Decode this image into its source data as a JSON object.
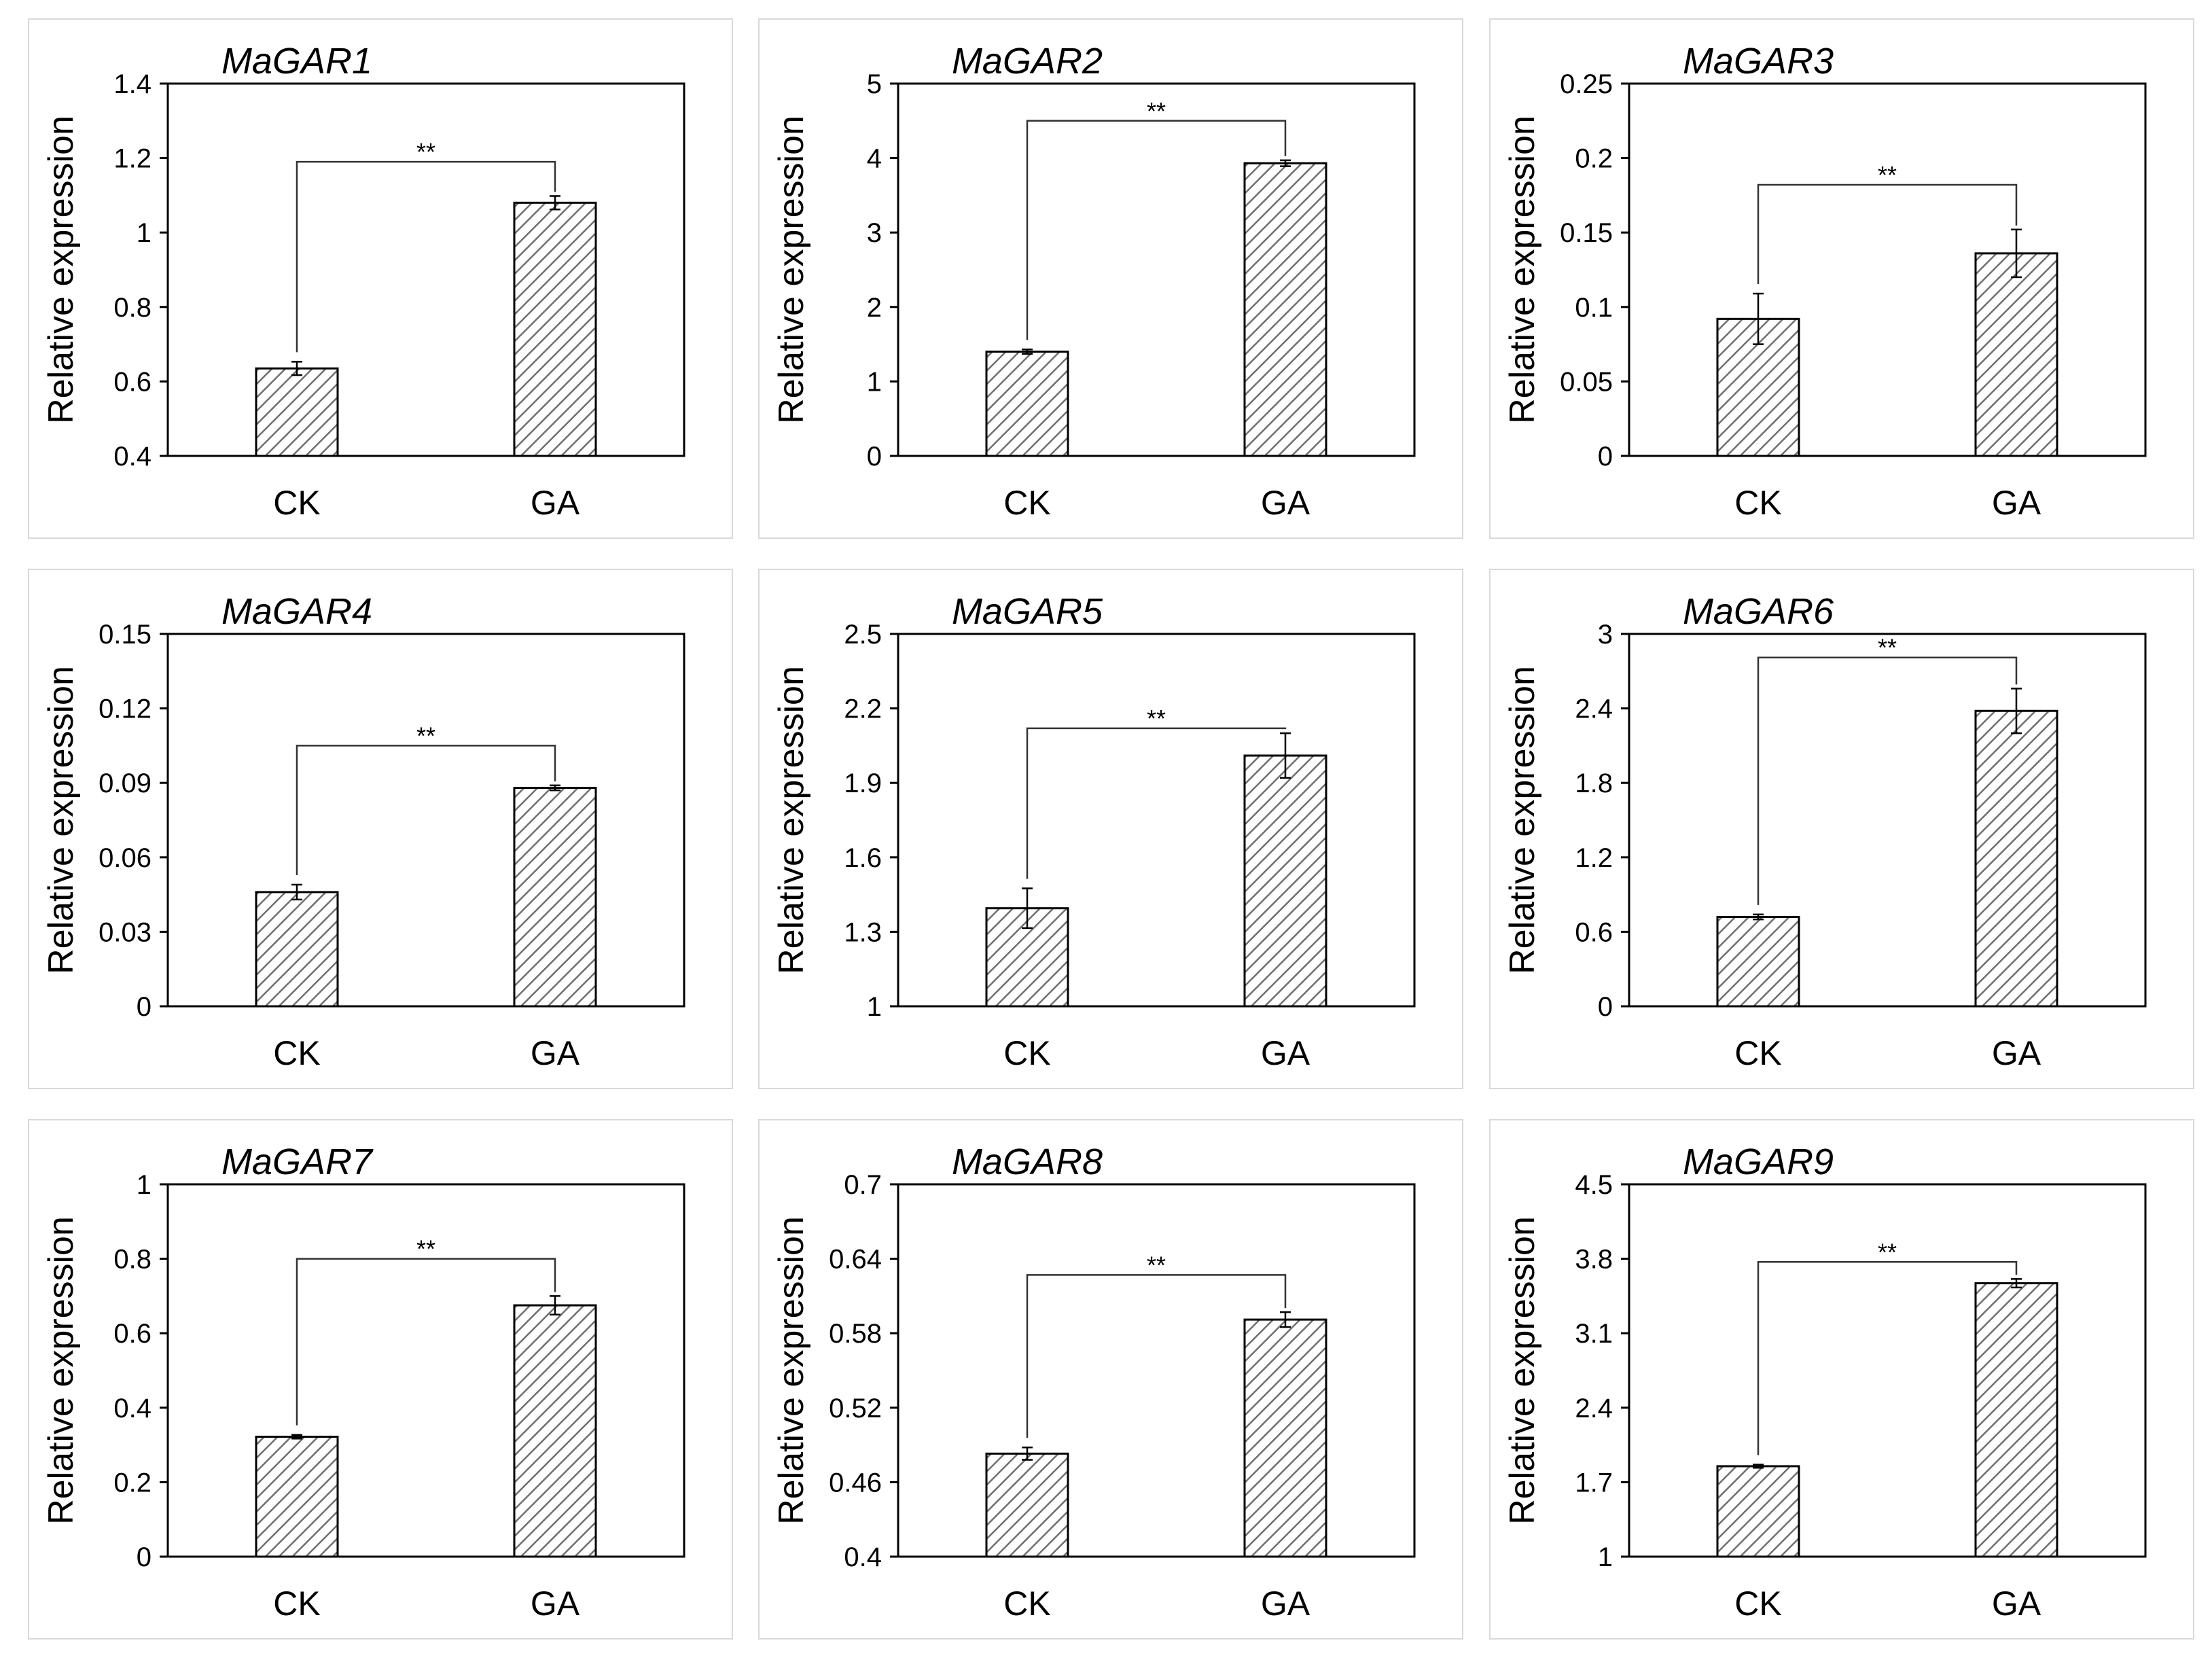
{
  "figure": {
    "ylabel": "Relative expression",
    "categories": [
      "CK",
      "GA"
    ],
    "significance": "**",
    "colors": {
      "bar_fill": "#ffffff",
      "hatch": "#6f6f6f",
      "axis": "#000000",
      "panel_border": "#d9d9d9"
    }
  },
  "chart_data": [
    {
      "type": "bar",
      "title": "MaGAR1",
      "categories": [
        "CK",
        "GA"
      ],
      "values": [
        0.635,
        1.08
      ],
      "errors": [
        0.018,
        0.018
      ],
      "ylim": [
        0.4,
        1.4
      ],
      "yticks": [
        "0.4",
        "0.6",
        "0.8",
        "1",
        "1.2",
        "1.4"
      ],
      "ylabel": "Relative expression",
      "significance": "**",
      "bracket_y": 1.19
    },
    {
      "type": "bar",
      "title": "MaGAR2",
      "categories": [
        "CK",
        "GA"
      ],
      "values": [
        1.4,
        3.93
      ],
      "errors": [
        0.03,
        0.04
      ],
      "ylim": [
        0,
        5
      ],
      "yticks": [
        "0",
        "1",
        "2",
        "3",
        "4",
        "5"
      ],
      "ylabel": "Relative expression",
      "significance": "**",
      "bracket_y": 4.5
    },
    {
      "type": "bar",
      "title": "MaGAR3",
      "categories": [
        "CK",
        "GA"
      ],
      "values": [
        0.092,
        0.136
      ],
      "errors": [
        0.017,
        0.016
      ],
      "ylim": [
        0,
        0.25
      ],
      "yticks": [
        "0",
        "0.05",
        "0.1",
        "0.15",
        "0.2",
        "0.25"
      ],
      "ylabel": "Relative expression",
      "significance": "**",
      "bracket_y": 0.182
    },
    {
      "type": "bar",
      "title": "MaGAR4",
      "categories": [
        "CK",
        "GA"
      ],
      "values": [
        0.046,
        0.088
      ],
      "errors": [
        0.003,
        0.001
      ],
      "ylim": [
        0,
        0.15
      ],
      "yticks": [
        "0",
        "0.03",
        "0.06",
        "0.09",
        "0.12",
        "0.15"
      ],
      "ylabel": "Relative expression",
      "significance": "**",
      "bracket_y": 0.105
    },
    {
      "type": "bar",
      "title": "MaGAR5",
      "categories": [
        "CK",
        "GA"
      ],
      "values": [
        1.395,
        2.01
      ],
      "errors": [
        0.08,
        0.09
      ],
      "ylim": [
        1,
        2.5
      ],
      "yticks": [
        "1",
        "1.3",
        "1.6",
        "1.9",
        "2.2",
        "2.5"
      ],
      "ylabel": "Relative expression",
      "significance": "**",
      "bracket_y": 2.12
    },
    {
      "type": "bar",
      "title": "MaGAR6",
      "categories": [
        "CK",
        "GA"
      ],
      "values": [
        0.72,
        2.38
      ],
      "errors": [
        0.02,
        0.18
      ],
      "ylim": [
        0,
        3
      ],
      "yticks": [
        "0",
        "0.6",
        "1.2",
        "1.8",
        "2.4",
        "3"
      ],
      "ylabel": "Relative expression",
      "significance": "**",
      "bracket_y": 2.81
    },
    {
      "type": "bar",
      "title": "MaGAR7",
      "categories": [
        "CK",
        "GA"
      ],
      "values": [
        0.322,
        0.675
      ],
      "errors": [
        0.005,
        0.025
      ],
      "ylim": [
        0,
        1
      ],
      "yticks": [
        "0",
        "0.2",
        "0.4",
        "0.6",
        "0.8",
        "1"
      ],
      "ylabel": "Relative expression",
      "significance": "**",
      "bracket_y": 0.8
    },
    {
      "type": "bar",
      "title": "MaGAR8",
      "categories": [
        "CK",
        "GA"
      ],
      "values": [
        0.483,
        0.591
      ],
      "errors": [
        0.005,
        0.006
      ],
      "ylim": [
        0.4,
        0.7
      ],
      "yticks": [
        "0.4",
        "0.46",
        "0.52",
        "0.58",
        "0.64",
        "0.7"
      ],
      "ylabel": "Relative expression",
      "significance": "**",
      "bracket_y": 0.627
    },
    {
      "type": "bar",
      "title": "MaGAR9",
      "categories": [
        "CK",
        "GA"
      ],
      "values": [
        1.85,
        3.57
      ],
      "errors": [
        0.015,
        0.04
      ],
      "ylim": [
        1,
        4.5
      ],
      "yticks": [
        "1",
        "1.7",
        "2.4",
        "3.1",
        "3.8",
        "4.5"
      ],
      "ylabel": "Relative expression",
      "significance": "**",
      "bracket_y": 3.77
    }
  ]
}
